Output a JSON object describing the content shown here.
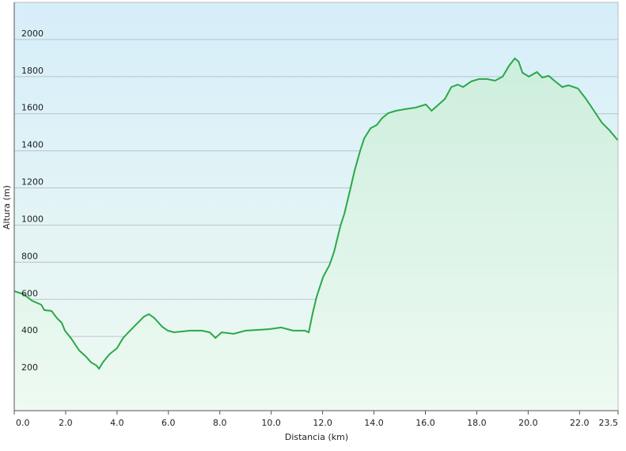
{
  "chart_data": {
    "type": "area",
    "x_label": "Distancia  (km)",
    "y_label": "Altura (m)",
    "xlim": [
      0,
      23.5
    ],
    "ylim": [
      0,
      2200
    ],
    "xticks": [
      {
        "value": 0,
        "label": "0.0"
      },
      {
        "value": 2,
        "label": "2.0"
      },
      {
        "value": 4,
        "label": "4.0"
      },
      {
        "value": 6,
        "label": "6.0"
      },
      {
        "value": 8,
        "label": "8.0"
      },
      {
        "value": 10,
        "label": "10.0"
      },
      {
        "value": 12,
        "label": "12.0"
      },
      {
        "value": 14,
        "label": "14.0"
      },
      {
        "value": 16,
        "label": "16.0"
      },
      {
        "value": 18,
        "label": "18.0"
      },
      {
        "value": 20,
        "label": "20.0"
      },
      {
        "value": 22,
        "label": "22.0"
      },
      23.5
    ],
    "yticks": [
      200,
      400,
      600,
      800,
      1000,
      1200,
      1400,
      1600,
      1800,
      2000
    ],
    "grid": true,
    "color": "#2aa84a",
    "x": [
      0,
      0.37,
      0.68,
      1.05,
      1.17,
      1.45,
      1.66,
      1.85,
      1.97,
      2.22,
      2.53,
      2.77,
      2.99,
      3.2,
      3.3,
      3.45,
      3.7,
      4.0,
      4.22,
      4.44,
      4.75,
      5.05,
      5.24,
      5.45,
      5.76,
      5.98,
      6.22,
      6.84,
      7.3,
      7.61,
      7.83,
      8.07,
      8.54,
      9.0,
      9.46,
      9.92,
      10.39,
      10.85,
      11.31,
      11.46,
      11.62,
      11.77,
      12.02,
      12.27,
      12.45,
      12.7,
      12.85,
      13.07,
      13.25,
      13.47,
      13.62,
      13.87,
      14.11,
      14.3,
      14.55,
      14.85,
      15.22,
      15.62,
      16.02,
      16.24,
      16.49,
      16.76,
      17.01,
      17.26,
      17.47,
      17.78,
      18.09,
      18.4,
      18.71,
      19.01,
      19.26,
      19.48,
      19.63,
      19.78,
      20.03,
      20.34,
      20.55,
      20.8,
      21.02,
      21.33,
      21.57,
      21.94,
      22.25,
      22.56,
      22.87,
      23.17,
      23.48
    ],
    "values": [
      644,
      627,
      593,
      571,
      542,
      537,
      499,
      473,
      431,
      388,
      324,
      294,
      260,
      243,
      226,
      260,
      303,
      337,
      388,
      422,
      465,
      507,
      520,
      499,
      452,
      431,
      422,
      431,
      431,
      422,
      392,
      422,
      414,
      431,
      435,
      439,
      448,
      431,
      431,
      422,
      529,
      614,
      721,
      785,
      857,
      998,
      1062,
      1190,
      1296,
      1403,
      1467,
      1522,
      1539,
      1574,
      1603,
      1616,
      1625,
      1633,
      1650,
      1616,
      1646,
      1680,
      1744,
      1757,
      1744,
      1774,
      1787,
      1787,
      1778,
      1800,
      1859,
      1898,
      1881,
      1821,
      1800,
      1825,
      1795,
      1804,
      1778,
      1744,
      1753,
      1736,
      1680,
      1616,
      1552,
      1510,
      1458
    ]
  }
}
